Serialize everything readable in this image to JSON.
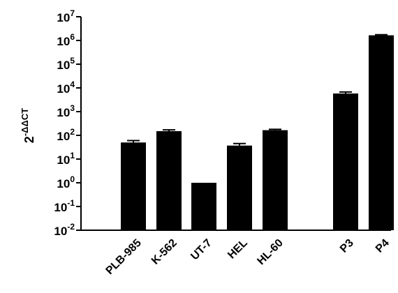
{
  "chart_data": {
    "type": "bar",
    "ylabel": {
      "base": "2",
      "exponent": "-ΔΔCT"
    },
    "yscale": "log10",
    "ylim": [
      0.01,
      10000000
    ],
    "yticks": [
      {
        "base": "10",
        "exp": "-2"
      },
      {
        "base": "10",
        "exp": "-1"
      },
      {
        "base": "10",
        "exp": "0"
      },
      {
        "base": "10",
        "exp": "1"
      },
      {
        "base": "10",
        "exp": "2"
      },
      {
        "base": "10",
        "exp": "3"
      },
      {
        "base": "10",
        "exp": "4"
      },
      {
        "base": "10",
        "exp": "5"
      },
      {
        "base": "10",
        "exp": "6"
      },
      {
        "base": "10",
        "exp": "7"
      }
    ],
    "categories": [
      "PLB-985",
      "K-562",
      "UT-7",
      "HEL",
      "HL-60",
      "P3",
      "P4"
    ],
    "values": [
      50,
      150,
      1,
      37,
      165,
      5800,
      1650000
    ],
    "error_upper": [
      60,
      170,
      1,
      45,
      180,
      6700,
      1750000
    ],
    "bar_color": "#000000",
    "grid": false,
    "legend": "none"
  }
}
